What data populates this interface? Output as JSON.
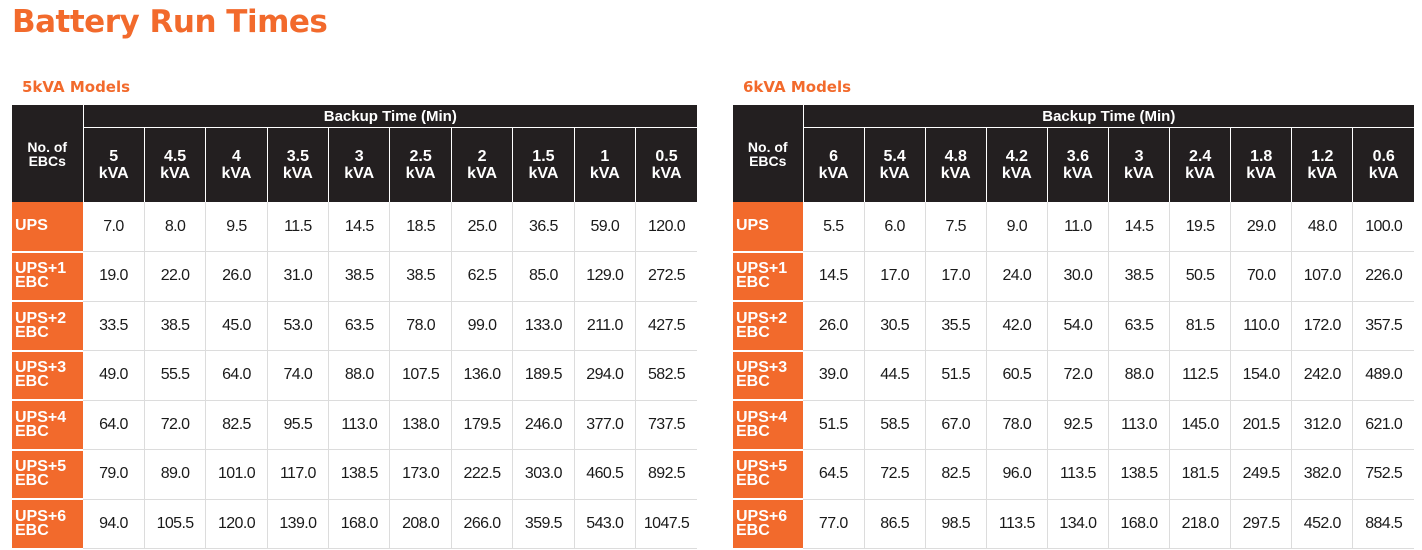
{
  "title": "Battery Run Times",
  "tables": [
    {
      "section_title": "5kVA Models",
      "corner_header": "No. of EBCs",
      "group_header": "Backup Time (Min)",
      "columns": [
        "5 kVA",
        "4.5 kVA",
        "4 kVA",
        "3.5 kVA",
        "3 kVA",
        "2.5 kVA",
        "2 kVA",
        "1.5 kVA",
        "1 kVA",
        "0.5 kVA"
      ],
      "rows": [
        {
          "label": "UPS",
          "values": [
            "7.0",
            "8.0",
            "9.5",
            "11.5",
            "14.5",
            "18.5",
            "25.0",
            "36.5",
            "59.0",
            "120.0"
          ]
        },
        {
          "label": "UPS+1 EBC",
          "values": [
            "19.0",
            "22.0",
            "26.0",
            "31.0",
            "38.5",
            "38.5",
            "62.5",
            "85.0",
            "129.0",
            "272.5"
          ]
        },
        {
          "label": "UPS+2 EBC",
          "values": [
            "33.5",
            "38.5",
            "45.0",
            "53.0",
            "63.5",
            "78.0",
            "99.0",
            "133.0",
            "211.0",
            "427.5"
          ]
        },
        {
          "label": "UPS+3 EBC",
          "values": [
            "49.0",
            "55.5",
            "64.0",
            "74.0",
            "88.0",
            "107.5",
            "136.0",
            "189.5",
            "294.0",
            "582.5"
          ]
        },
        {
          "label": "UPS+4 EBC",
          "values": [
            "64.0",
            "72.0",
            "82.5",
            "95.5",
            "113.0",
            "138.0",
            "179.5",
            "246.0",
            "377.0",
            "737.5"
          ]
        },
        {
          "label": "UPS+5 EBC",
          "values": [
            "79.0",
            "89.0",
            "101.0",
            "117.0",
            "138.5",
            "173.0",
            "222.5",
            "303.0",
            "460.5",
            "892.5"
          ]
        },
        {
          "label": "UPS+6 EBC",
          "values": [
            "94.0",
            "105.5",
            "120.0",
            "139.0",
            "168.0",
            "208.0",
            "266.0",
            "359.5",
            "543.0",
            "1047.5"
          ]
        }
      ]
    },
    {
      "section_title": "6kVA Models",
      "corner_header": "No. of EBCs",
      "group_header": "Backup Time (Min)",
      "columns": [
        "6 kVA",
        "5.4 kVA",
        "4.8 kVA",
        "4.2 kVA",
        "3.6 kVA",
        "3 kVA",
        "2.4 kVA",
        "1.8 kVA",
        "1.2 kVA",
        "0.6 kVA"
      ],
      "rows": [
        {
          "label": "UPS",
          "values": [
            "5.5",
            "6.0",
            "7.5",
            "9.0",
            "11.0",
            "14.5",
            "19.5",
            "29.0",
            "48.0",
            "100.0"
          ]
        },
        {
          "label": "UPS+1 EBC",
          "values": [
            "14.5",
            "17.0",
            "17.0",
            "24.0",
            "30.0",
            "38.5",
            "50.5",
            "70.0",
            "107.0",
            "226.0"
          ]
        },
        {
          "label": "UPS+2 EBC",
          "values": [
            "26.0",
            "30.5",
            "35.5",
            "42.0",
            "54.0",
            "63.5",
            "81.5",
            "110.0",
            "172.0",
            "357.5"
          ]
        },
        {
          "label": "UPS+3 EBC",
          "values": [
            "39.0",
            "44.5",
            "51.5",
            "60.5",
            "72.0",
            "88.0",
            "112.5",
            "154.0",
            "242.0",
            "489.0"
          ]
        },
        {
          "label": "UPS+4 EBC",
          "values": [
            "51.5",
            "58.5",
            "67.0",
            "78.0",
            "92.5",
            "113.0",
            "145.0",
            "201.5",
            "312.0",
            "621.0"
          ]
        },
        {
          "label": "UPS+5 EBC",
          "values": [
            "64.5",
            "72.5",
            "82.5",
            "96.0",
            "113.5",
            "138.5",
            "181.5",
            "249.5",
            "382.0",
            "752.5"
          ]
        },
        {
          "label": "UPS+6 EBC",
          "values": [
            "77.0",
            "86.5",
            "98.5",
            "113.5",
            "134.0",
            "168.0",
            "218.0",
            "297.5",
            "452.0",
            "884.5"
          ]
        }
      ]
    }
  ],
  "colors": {
    "accent": "#f26a2c",
    "header_dark": "#231f20",
    "grid": "#dcdcdc"
  }
}
